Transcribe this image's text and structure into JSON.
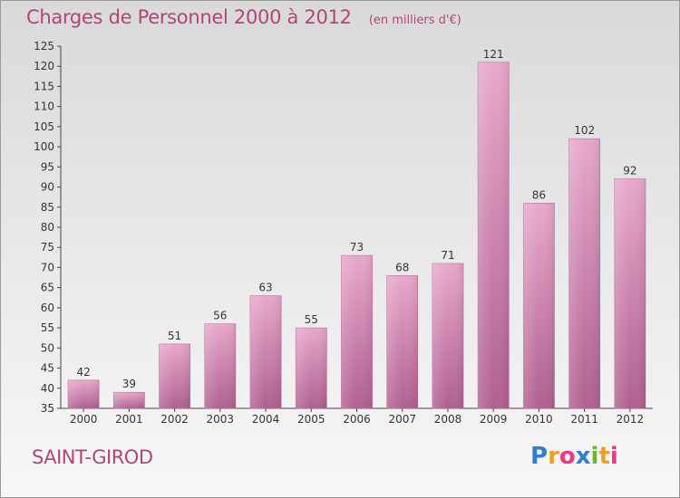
{
  "header": {
    "title": "Charges de Personnel 2000 à 2012",
    "unit": "(en milliers d'€)"
  },
  "footer": {
    "commune": "SAINT-GIROD",
    "logo_letters": [
      {
        "ch": "P",
        "color": "#2f7fd0"
      },
      {
        "ch": "r",
        "color": "#f0a020"
      },
      {
        "ch": "o",
        "color": "#e83a8a"
      },
      {
        "ch": "x",
        "color": "#2f7fd0"
      },
      {
        "ch": "i",
        "color": "#66b82e"
      },
      {
        "ch": "t",
        "color": "#f0a020"
      },
      {
        "ch": "i",
        "color": "#e83a8a"
      }
    ]
  },
  "colors": {
    "title": "#b0457a",
    "bar_light": "#e8a8cc",
    "bar_dark": "#b06090"
  },
  "chart_data": {
    "type": "bar",
    "categories": [
      "2000",
      "2001",
      "2002",
      "2003",
      "2004",
      "2005",
      "2006",
      "2007",
      "2008",
      "2009",
      "2010",
      "2011",
      "2012"
    ],
    "values": [
      42,
      39,
      51,
      56,
      63,
      55,
      73,
      68,
      71,
      121,
      86,
      102,
      92
    ],
    "ylim": [
      35,
      125
    ],
    "yticks": [
      35,
      40,
      45,
      50,
      55,
      60,
      65,
      70,
      75,
      80,
      85,
      90,
      95,
      100,
      105,
      110,
      115,
      120,
      125
    ],
    "grid": false
  }
}
